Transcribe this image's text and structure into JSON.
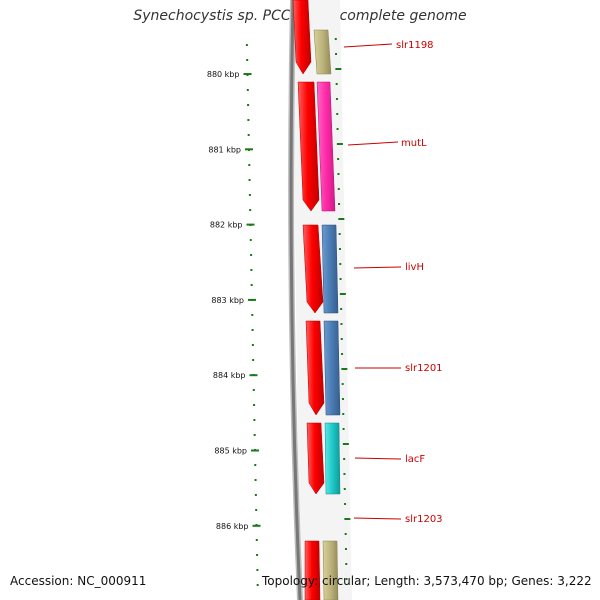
{
  "title": "Synechocystis sp. PCC 6803, complete genome",
  "ruler": {
    "unit": "kbp",
    "ticks": [
      "880 kbp",
      "881 kbp",
      "882 kbp",
      "883 kbp",
      "884 kbp",
      "885 kbp",
      "886 kbp"
    ],
    "tick_positions_kbp": [
      880,
      881,
      882,
      883,
      884,
      885,
      886
    ]
  },
  "genes": [
    {
      "name": "slr1198",
      "label_pos_kbp": 879.64
    },
    {
      "name": "mutL",
      "label_pos_kbp": 880.91
    },
    {
      "name": "livH",
      "label_pos_kbp": 882.52
    },
    {
      "name": "slr1201",
      "label_pos_kbp": 883.83
    },
    {
      "name": "lacF",
      "label_pos_kbp": 885.07
    },
    {
      "name": "slr1203",
      "label_pos_kbp": 885.93
    }
  ],
  "colors": {
    "forward_cds": "#ff0000",
    "slr1198": "#bdb47c",
    "mutL": "#ff2aa8",
    "livH": "#4a7cb4",
    "slr1201": "#4a7cb4",
    "lacF": "#1ec8c8",
    "next_gene": "#bdb47c",
    "label": "#cc0000",
    "tick": "#1a7a1a",
    "backbone": "#777777"
  },
  "footer": {
    "accession": "Accession: NC_000911",
    "topology": "Topology: circular; Length: 3,573,470 bp; Genes: 3,222"
  }
}
